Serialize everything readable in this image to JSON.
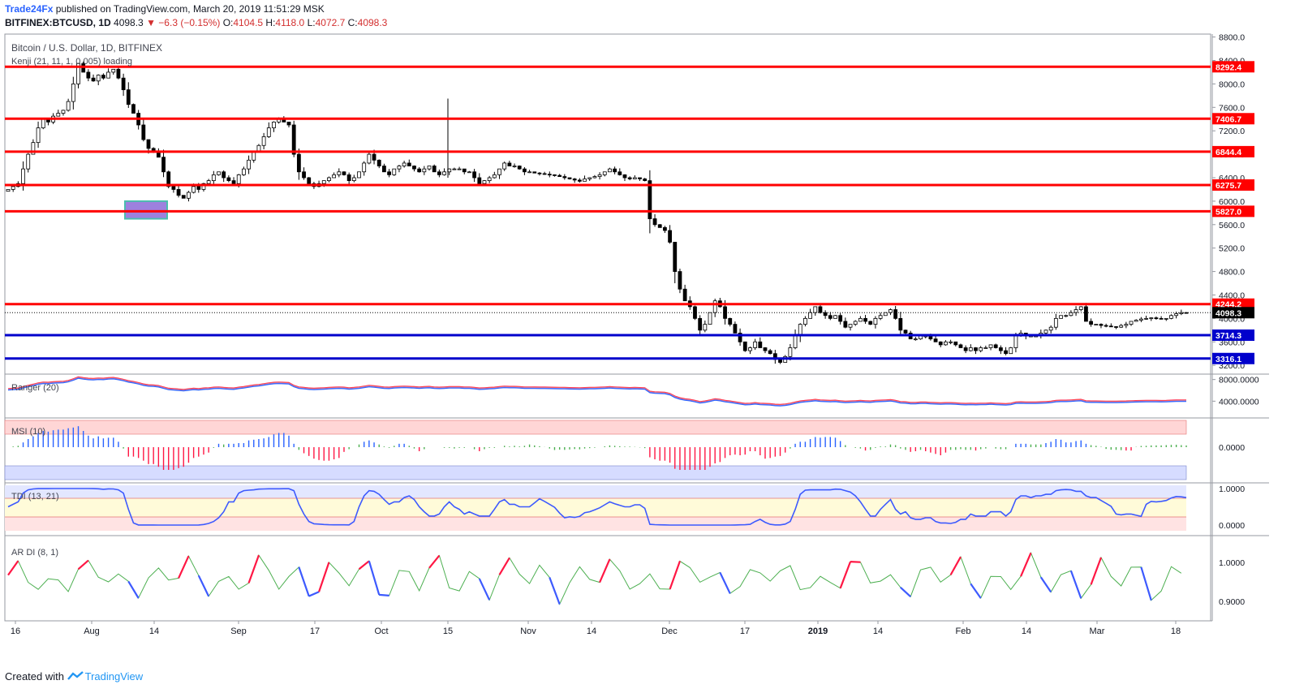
{
  "header": {
    "publisher": "Trade24Fx",
    "published_text": "published on TradingView.com, March 20, 2019 11:51:29 MSK",
    "symbol": "BITFINEX:BTCUSD, 1D",
    "last": "4098.3",
    "change_arrow": "▼",
    "change": "−6.3 (−0.15%)",
    "o_label": "O:",
    "o": "4104.5",
    "h_label": "H:",
    "h": "4118.0",
    "l_label": "L:",
    "l": "4072.7",
    "c_label": "C:",
    "c": "4098.3"
  },
  "footer": {
    "created_with": "Created with",
    "brand": "TradingView",
    "logo_icon": "tradingview-logo-icon"
  },
  "chart_data": {
    "type": "candlestick",
    "title": "Bitcoin / U.S. Dollar, 1D, BITFINEX",
    "indicator_label": "Kenji (21, 11, 1, 0.005) loading",
    "last_price_label": "4098.3",
    "y_ticks": [
      8800,
      8400,
      8000,
      7600,
      7200,
      6800,
      6400,
      6000,
      5600,
      5200,
      4800,
      4400,
      4000,
      3600,
      3200
    ],
    "ylim": [
      3050,
      8850
    ],
    "x_ticks": [
      "16",
      "Aug",
      "14",
      "Sep",
      "17",
      "Oct",
      "15",
      "Nov",
      "14",
      "Dec",
      "17",
      "2019",
      "14",
      "Feb",
      "14",
      "Mar",
      "18"
    ],
    "x_tick_bold": "2019",
    "levels": [
      {
        "value": 8292.4,
        "label": "8292.4",
        "color": "#ff0000"
      },
      {
        "value": 7406.7,
        "label": "7406.7",
        "color": "#ff0000"
      },
      {
        "value": 6844.4,
        "label": "6844.4",
        "color": "#ff0000"
      },
      {
        "value": 6275.7,
        "label": "6275.7",
        "color": "#ff0000"
      },
      {
        "value": 5827.0,
        "label": "5827.0",
        "color": "#ff0000"
      },
      {
        "value": 4244.2,
        "label": "4244.2",
        "color": "#ff0000"
      },
      {
        "value": 3714.3,
        "label": "3714.3",
        "color": "#0000cc"
      },
      {
        "value": 3316.1,
        "label": "3316.1",
        "color": "#0000cc"
      }
    ],
    "close_path": [
      6200,
      6250,
      6300,
      6550,
      6800,
      7000,
      7250,
      7400,
      7350,
      7450,
      7500,
      7550,
      7700,
      8000,
      8350,
      8200,
      8100,
      8050,
      8150,
      8100,
      8200,
      8250,
      8100,
      7900,
      7650,
      7500,
      7300,
      7050,
      6900,
      6850,
      6750,
      6500,
      6250,
      6200,
      6100,
      6050,
      6150,
      6250,
      6200,
      6300,
      6350,
      6450,
      6500,
      6400,
      6350,
      6300,
      6450,
      6550,
      6700,
      6850,
      6950,
      7100,
      7250,
      7350,
      7400,
      7350,
      7300,
      6800,
      6500,
      6400,
      6300,
      6250,
      6300,
      6350,
      6400,
      6450,
      6500,
      6450,
      6350,
      6400,
      6500,
      6650,
      6800,
      6700,
      6600,
      6500,
      6450,
      6550,
      6600,
      6650,
      6600,
      6550,
      6500,
      6550,
      6600,
      6500,
      6450,
      6500,
      6550,
      6550,
      6550,
      6500,
      6500,
      6400,
      6300,
      6350,
      6400,
      6450,
      6550,
      6650,
      6600,
      6600,
      6550,
      6500,
      6500,
      6480,
      6470,
      6460,
      6450,
      6440,
      6420,
      6400,
      6380,
      6360,
      6340,
      6380,
      6400,
      6420,
      6450,
      6500,
      6550,
      6500,
      6450,
      6400,
      6380,
      6400,
      6380,
      6350,
      5700,
      5600,
      5550,
      5500,
      5300,
      4800,
      4500,
      4300,
      4200,
      4000,
      3800,
      3900,
      4100,
      4300,
      4200,
      4000,
      3900,
      3750,
      3600,
      3450,
      3500,
      3600,
      3500,
      3450,
      3400,
      3300,
      3250,
      3350,
      3500,
      3700,
      3900,
      4000,
      4100,
      4200,
      4100,
      4050,
      4000,
      4050,
      3950,
      3850,
      3900,
      3950,
      4000,
      3950,
      3900,
      4000,
      4050,
      4100,
      4150,
      4000,
      3800,
      3750,
      3650,
      3650,
      3700,
      3700,
      3650,
      3600,
      3550,
      3600,
      3600,
      3550,
      3500,
      3450,
      3500,
      3450,
      3500,
      3500,
      3550,
      3500,
      3450,
      3400,
      3500,
      3700,
      3750,
      3700,
      3700,
      3700,
      3750,
      3800,
      3850,
      4000,
      4050,
      4050,
      4100,
      4150,
      4200,
      3950,
      3900,
      3900,
      3880,
      3870,
      3860,
      3850,
      3880,
      3900,
      3950,
      3970,
      3990,
      4000,
      4010,
      4000,
      3990,
      4000,
      4050,
      4080,
      4100,
      4098
    ],
    "highlight_box": {
      "low": 5700,
      "high": 6000
    },
    "panels": [
      {
        "label": "Ranger (20)",
        "ticks": [
          8000,
          4000
        ],
        "tick_labels": [
          "8000.0000",
          "4000.0000"
        ]
      },
      {
        "label": "MSI (10)",
        "tick_labels": [
          "0.0000"
        ]
      },
      {
        "label": "TDI (13, 21)",
        "tick_labels": [
          "1.0000",
          "0.0000"
        ]
      },
      {
        "label": "AR DI (8, 1)",
        "tick_labels": [
          "1.0000",
          "0.9000"
        ]
      }
    ],
    "colors": {
      "up": "#ffffff",
      "down": "#000000",
      "bull": "#2962ff",
      "bear": "#ff1744",
      "neutral": "#4caf50"
    }
  }
}
